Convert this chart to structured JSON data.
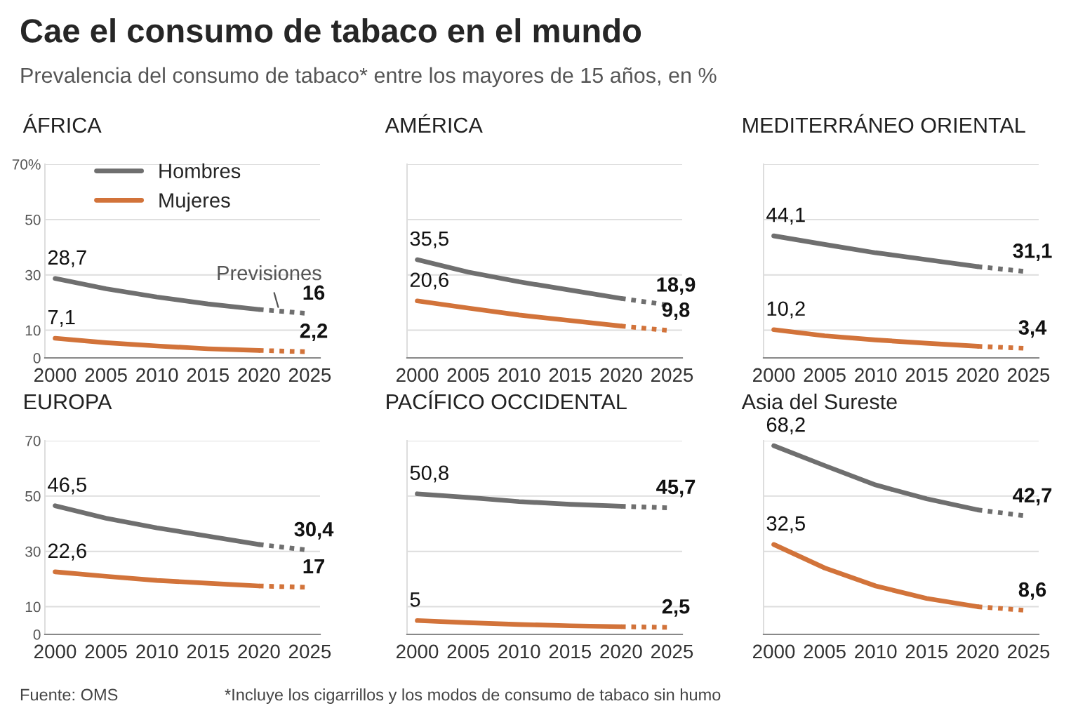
{
  "chart_data": [
    {
      "type": "line",
      "title": "Cae el consumo de tabaco en el mundo",
      "subtitle": "Prevalencia del consumo de tabaco* entre los mayores de 15 años, en %",
      "annotations": [
        "Fuente: OMS",
        "*Incluye los cigarrillos y los modos de consumo de tabaco sin humo",
        {
          "text": "Previsiones",
          "x": 2022,
          "y": 17
        }
      ],
      "xlabel": "ÁFRICA",
      "xlim": [
        1999,
        2026
      ],
      "xticks": [
        2000,
        2005,
        2010,
        2015,
        2020,
        2025
      ],
      "ylim": [
        0,
        70
      ],
      "yticks": [
        0,
        10,
        30,
        50,
        {
          "value": 70,
          "label": "70%"
        }
      ],
      "grid": "y",
      "legend": "top",
      "series": [
        {
          "name": "Hombres",
          "color": "#6f6f6f",
          "line_style": "solid",
          "x": [
            2000,
            2005,
            2010,
            2015,
            2020
          ],
          "values": [
            28.7,
            25,
            22,
            19.5,
            17.5
          ],
          "value_labels": [
            "28,7",
            null,
            null,
            null,
            null
          ]
        },
        {
          "color": "#6f6f6f",
          "line_style": "dotted",
          "x": [
            2020,
            2025
          ],
          "values": [
            17.5,
            16
          ],
          "value_labels": [
            null,
            "16"
          ]
        },
        {
          "name": "Mujeres",
          "color": "#d2733a",
          "line_style": "solid",
          "x": [
            2000,
            2005,
            2010,
            2015,
            2020
          ],
          "values": [
            7.1,
            5.5,
            4.3,
            3.3,
            2.7
          ],
          "value_labels": [
            "7,1",
            null,
            null,
            null,
            null
          ]
        },
        {
          "color": "#d2733a",
          "line_style": "dotted",
          "x": [
            2020,
            2025
          ],
          "values": [
            2.7,
            2.2
          ],
          "value_labels": [
            null,
            "2,2"
          ]
        }
      ]
    },
    {
      "type": "line",
      "xlabel": "AMÉRICA",
      "xlim": [
        1999,
        2026
      ],
      "xticks": [
        2000,
        2005,
        2010,
        2015,
        2020,
        2025
      ],
      "ylim": [
        0,
        70
      ],
      "yticks": [
        0,
        10,
        30,
        50,
        70
      ],
      "grid": "y",
      "tick_labels": "x",
      "series": [
        {
          "color": "#6f6f6f",
          "line_style": "solid",
          "x": [
            2000,
            2005,
            2010,
            2015,
            2020
          ],
          "values": [
            35.5,
            31,
            27.5,
            24.5,
            21.5
          ],
          "value_labels": [
            "35,5",
            null,
            null,
            null,
            null
          ]
        },
        {
          "color": "#6f6f6f",
          "line_style": "dotted",
          "x": [
            2020,
            2025
          ],
          "values": [
            21.5,
            18.9
          ],
          "value_labels": [
            null,
            "18,9"
          ]
        },
        {
          "color": "#d2733a",
          "line_style": "solid",
          "x": [
            2000,
            2005,
            2010,
            2015,
            2020
          ],
          "values": [
            20.6,
            18,
            15.5,
            13.5,
            11.5
          ],
          "value_labels": [
            "20,6",
            null,
            null,
            null,
            null
          ]
        },
        {
          "color": "#d2733a",
          "line_style": "dotted",
          "x": [
            2020,
            2025
          ],
          "values": [
            11.5,
            9.8
          ],
          "value_labels": [
            null,
            "9,8"
          ]
        }
      ]
    },
    {
      "type": "line",
      "xlabel": "MEDITERRÁNEO ORIENTAL",
      "xlim": [
        1999,
        2026
      ],
      "xticks": [
        2000,
        2005,
        2010,
        2015,
        2020,
        2025
      ],
      "ylim": [
        0,
        70
      ],
      "yticks": [
        0,
        10,
        30,
        50,
        70
      ],
      "grid": "y",
      "tick_labels": "x",
      "series": [
        {
          "color": "#6f6f6f",
          "line_style": "solid",
          "x": [
            2000,
            2005,
            2010,
            2015,
            2020
          ],
          "values": [
            44.1,
            41,
            38,
            35.5,
            33
          ],
          "value_labels": [
            "44,1",
            null,
            null,
            null,
            null
          ]
        },
        {
          "color": "#6f6f6f",
          "line_style": "dotted",
          "x": [
            2020,
            2025
          ],
          "values": [
            33,
            31.1
          ],
          "value_labels": [
            null,
            "31,1"
          ]
        },
        {
          "color": "#d2733a",
          "line_style": "solid",
          "x": [
            2000,
            2005,
            2010,
            2015,
            2020
          ],
          "values": [
            10.2,
            8,
            6.5,
            5.3,
            4.2
          ],
          "value_labels": [
            "10,2",
            null,
            null,
            null,
            null
          ]
        },
        {
          "color": "#d2733a",
          "line_style": "dotted",
          "x": [
            2020,
            2025
          ],
          "values": [
            4.2,
            3.4
          ],
          "value_labels": [
            null,
            "3,4"
          ]
        }
      ]
    },
    {
      "type": "line",
      "xlabel": "EUROPA",
      "xlim": [
        1999,
        2026
      ],
      "xticks": [
        2000,
        2005,
        2010,
        2015,
        2020,
        2025
      ],
      "ylim": [
        0,
        70
      ],
      "yticks": [
        0,
        10,
        30,
        50,
        70
      ],
      "grid": "y",
      "series": [
        {
          "color": "#6f6f6f",
          "line_style": "solid",
          "x": [
            2000,
            2005,
            2010,
            2015,
            2020
          ],
          "values": [
            46.5,
            42,
            38.5,
            35.5,
            32.5
          ],
          "value_labels": [
            "46,5",
            null,
            null,
            null,
            null
          ]
        },
        {
          "color": "#6f6f6f",
          "line_style": "dotted",
          "x": [
            2020,
            2025
          ],
          "values": [
            32.5,
            30.4
          ],
          "value_labels": [
            null,
            "30,4"
          ]
        },
        {
          "color": "#d2733a",
          "line_style": "solid",
          "x": [
            2000,
            2005,
            2010,
            2015,
            2020
          ],
          "values": [
            22.6,
            21,
            19.5,
            18.5,
            17.5
          ],
          "value_labels": [
            "22,6",
            null,
            null,
            null,
            null
          ]
        },
        {
          "color": "#d2733a",
          "line_style": "dotted",
          "x": [
            2020,
            2025
          ],
          "values": [
            17.5,
            17
          ],
          "value_labels": [
            null,
            "17"
          ]
        }
      ]
    },
    {
      "type": "line",
      "xlabel": "PACÍFICO OCCIDENTAL",
      "xlim": [
        1999,
        2026
      ],
      "xticks": [
        2000,
        2005,
        2010,
        2015,
        2020,
        2025
      ],
      "ylim": [
        0,
        70
      ],
      "yticks": [
        0,
        10,
        30,
        50,
        70
      ],
      "grid": "y",
      "tick_labels": "x",
      "series": [
        {
          "color": "#6f6f6f",
          "line_style": "solid",
          "x": [
            2000,
            2005,
            2010,
            2015,
            2020
          ],
          "values": [
            50.8,
            49.5,
            48,
            47,
            46.3
          ],
          "value_labels": [
            "50,8",
            null,
            null,
            null,
            null
          ]
        },
        {
          "color": "#6f6f6f",
          "line_style": "dotted",
          "x": [
            2020,
            2025
          ],
          "values": [
            46.3,
            45.7
          ],
          "value_labels": [
            null,
            "45,7"
          ]
        },
        {
          "color": "#d2733a",
          "line_style": "solid",
          "x": [
            2000,
            2005,
            2010,
            2015,
            2020
          ],
          "values": [
            5,
            4.2,
            3.6,
            3.1,
            2.8
          ],
          "value_labels": [
            "5",
            null,
            null,
            null,
            null
          ]
        },
        {
          "color": "#d2733a",
          "line_style": "dotted",
          "x": [
            2020,
            2025
          ],
          "values": [
            2.8,
            2.5
          ],
          "value_labels": [
            null,
            "2,5"
          ]
        }
      ]
    },
    {
      "type": "line",
      "xlabel": "Asia del Sureste",
      "xlim": [
        1999,
        2026
      ],
      "xticks": [
        2000,
        2005,
        2010,
        2015,
        2020,
        2025
      ],
      "ylim": [
        0,
        70
      ],
      "yticks": [
        0,
        10,
        30,
        50,
        70
      ],
      "grid": "y",
      "tick_labels": "x",
      "series": [
        {
          "color": "#6f6f6f",
          "line_style": "solid",
          "x": [
            2000,
            2005,
            2010,
            2015,
            2020
          ],
          "values": [
            68.2,
            61,
            54,
            49,
            45
          ],
          "value_labels": [
            "68,2",
            null,
            null,
            null,
            null
          ]
        },
        {
          "color": "#6f6f6f",
          "line_style": "dotted",
          "x": [
            2020,
            2025
          ],
          "values": [
            45,
            42.7
          ],
          "value_labels": [
            null,
            "42,7"
          ]
        },
        {
          "color": "#d2733a",
          "line_style": "solid",
          "x": [
            2000,
            2005,
            2010,
            2015,
            2020
          ],
          "values": [
            32.5,
            24,
            17.5,
            13,
            10
          ],
          "value_labels": [
            "32,5",
            null,
            null,
            null,
            null
          ]
        },
        {
          "color": "#d2733a",
          "line_style": "dotted",
          "x": [
            2020,
            2025
          ],
          "values": [
            10,
            8.6
          ],
          "value_labels": [
            null,
            "8,6"
          ]
        }
      ]
    }
  ]
}
